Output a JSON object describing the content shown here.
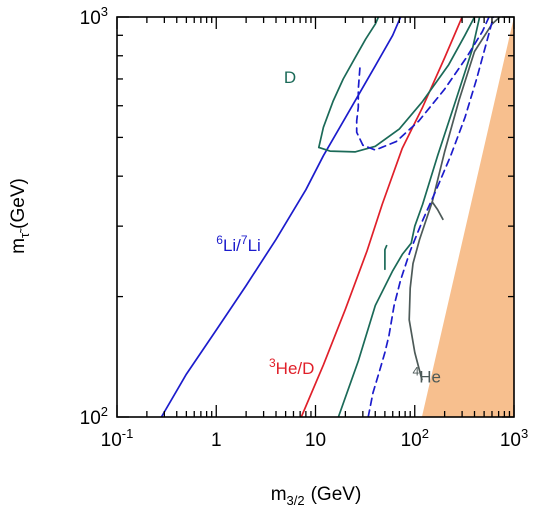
{
  "chart_data": {
    "type": "line",
    "title": "",
    "xlabel": {
      "base": "m",
      "sub": "3/2",
      "unit": "(GeV)"
    },
    "ylabel": {
      "base": "m",
      "sub": "τ̃",
      "unit": "(GeV)"
    },
    "x_scale": "log",
    "y_scale": "log",
    "xlim": [
      0.1,
      1000
    ],
    "ylim": [
      100,
      1000
    ],
    "grid": false,
    "legend": "none",
    "x_ticks": [
      {
        "value": 0.1,
        "base": "10",
        "exp": "-1"
      },
      {
        "value": 1,
        "base": "1",
        "exp": ""
      },
      {
        "value": 10,
        "base": "10",
        "exp": ""
      },
      {
        "value": 100,
        "base": "10",
        "exp": "2"
      },
      {
        "value": 1000,
        "base": "10",
        "exp": "3"
      }
    ],
    "y_ticks": [
      {
        "value": 100,
        "base": "10",
        "exp": "2"
      },
      {
        "value": 1000,
        "base": "10",
        "exp": "3"
      }
    ],
    "excluded_region": {
      "color": "#f7bf8e",
      "points": [
        [
          118,
          100
        ],
        [
          1000,
          100
        ],
        [
          1000,
          1000
        ]
      ]
    },
    "series": [
      {
        "name": "Li6Li7",
        "color": "#1c1ccc",
        "dash": false,
        "points": [
          [
            0.28,
            100
          ],
          [
            0.5,
            128
          ],
          [
            1,
            165
          ],
          [
            2,
            213
          ],
          [
            4,
            278
          ],
          [
            8,
            370
          ],
          [
            12,
            450
          ],
          [
            20,
            560
          ],
          [
            40,
            755
          ],
          [
            60,
            900
          ],
          [
            72,
            1000
          ]
        ]
      },
      {
        "name": "He3D",
        "color": "#e0202a",
        "dash": false,
        "points": [
          [
            7.2,
            100
          ],
          [
            12,
            135
          ],
          [
            20,
            186
          ],
          [
            33,
            260
          ],
          [
            47,
            340
          ],
          [
            75,
            470
          ],
          [
            120,
            595
          ],
          [
            200,
            790
          ],
          [
            300,
            1000
          ]
        ]
      },
      {
        "name": "D_upper",
        "color": "#1b6a58",
        "dash": false,
        "points": [
          [
            10.8,
            472
          ],
          [
            12,
            530
          ],
          [
            15,
            615
          ],
          [
            19,
            700
          ],
          [
            25,
            790
          ],
          [
            32,
            880
          ],
          [
            40,
            960
          ],
          [
            43,
            1000
          ]
        ]
      },
      {
        "name": "D_loop",
        "color": "#1b6a58",
        "dash": false,
        "points": [
          [
            10.8,
            472
          ],
          [
            14,
            462
          ],
          [
            25,
            460
          ],
          [
            40,
            475
          ],
          [
            70,
            525
          ],
          [
            120,
            615
          ],
          [
            220,
            760
          ],
          [
            320,
            900
          ],
          [
            400,
            1000
          ]
        ]
      },
      {
        "name": "D_lower",
        "color": "#1b6a58",
        "dash": false,
        "points": [
          [
            17,
            100
          ],
          [
            27,
            138
          ],
          [
            40,
            190
          ],
          [
            60,
            232
          ],
          [
            75,
            255
          ],
          [
            92,
            272
          ],
          [
            100,
            300
          ],
          [
            120,
            340
          ],
          [
            170,
            450
          ],
          [
            260,
            620
          ],
          [
            380,
            830
          ],
          [
            450,
            1000
          ]
        ]
      },
      {
        "name": "D_notch",
        "color": "#1b6a58",
        "dash": false,
        "points": [
          [
            50,
            234
          ],
          [
            50,
            262
          ],
          [
            52,
            268
          ]
        ]
      },
      {
        "name": "He4",
        "color": "#4d5a58",
        "dash": false,
        "points": [
          [
            118,
            124
          ],
          [
            100,
            145
          ],
          [
            88,
            175
          ],
          [
            90,
            210
          ],
          [
            96,
            242
          ],
          [
            112,
            278
          ],
          [
            150,
            345
          ],
          [
            200,
            460
          ],
          [
            280,
            620
          ],
          [
            400,
            820
          ],
          [
            600,
            960
          ],
          [
            720,
            1000
          ]
        ]
      },
      {
        "name": "He4_inner",
        "color": "#4d5a58",
        "dash": false,
        "points": [
          [
            150,
            345
          ],
          [
            170,
            330
          ],
          [
            192,
            312
          ]
        ]
      },
      {
        "name": "dashed_lower",
        "color": "#1c1ccc",
        "dash": true,
        "points": [
          [
            34,
            100
          ],
          [
            38,
            115
          ],
          [
            44,
            130
          ],
          [
            50,
            145
          ],
          [
            55,
            160
          ],
          [
            62,
            190
          ],
          [
            72,
            220
          ],
          [
            90,
            260
          ],
          [
            120,
            310
          ],
          [
            165,
            370
          ],
          [
            230,
            450
          ],
          [
            320,
            560
          ],
          [
            420,
            700
          ],
          [
            520,
            850
          ],
          [
            620,
            1000
          ]
        ]
      },
      {
        "name": "dashed_upper",
        "color": "#1c1ccc",
        "dash": true,
        "points": [
          [
            28,
            745
          ],
          [
            27,
            660
          ],
          [
            27,
            595
          ],
          [
            26,
            550
          ],
          [
            26,
            515
          ],
          [
            30,
            478
          ],
          [
            40,
            465
          ],
          [
            65,
            488
          ],
          [
            110,
            550
          ],
          [
            200,
            660
          ],
          [
            330,
            790
          ],
          [
            480,
            920
          ],
          [
            560,
            1000
          ]
        ]
      }
    ],
    "annotations": [
      {
        "text": "D",
        "x": 0.5,
        "y": 1.0,
        "color": "#1b6a58",
        "at": [
          4.8,
          683
        ]
      },
      {
        "text": "Li",
        "color": "#1c1ccc",
        "at": [
          1.0,
          260
        ],
        "pre_sup": "6",
        "mid": "Li/",
        "mid_sup": "7"
      },
      {
        "text": "He/D",
        "color": "#e0202a",
        "at": [
          3.4,
          128
        ],
        "pre_sup": "3"
      },
      {
        "text": "He",
        "color": "#4d5a58",
        "at": [
          95,
          122
        ],
        "pre_sup": "4"
      }
    ]
  }
}
